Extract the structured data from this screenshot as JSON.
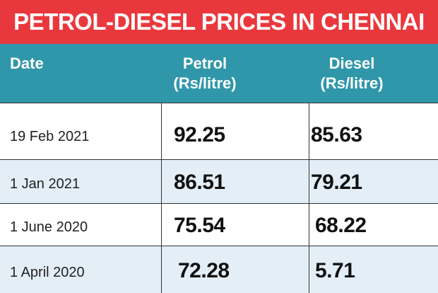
{
  "title": "PETROL-DIESEL PRICES IN CHENNAI",
  "table": {
    "header": [
      [
        "Date"
      ],
      [
        "Petrol",
        "(Rs/litre)"
      ],
      [
        "Diesel",
        "(Rs/litre)"
      ]
    ],
    "rows": [
      [
        "19 Feb 2021",
        "92.25",
        "85.63"
      ],
      [
        "1 Jan 2021",
        "86.51",
        "79.21"
      ],
      [
        "1 June 2020",
        "75.54",
        "68.22"
      ],
      [
        "1 April 2020",
        "72.28",
        "5.71"
      ]
    ]
  }
}
